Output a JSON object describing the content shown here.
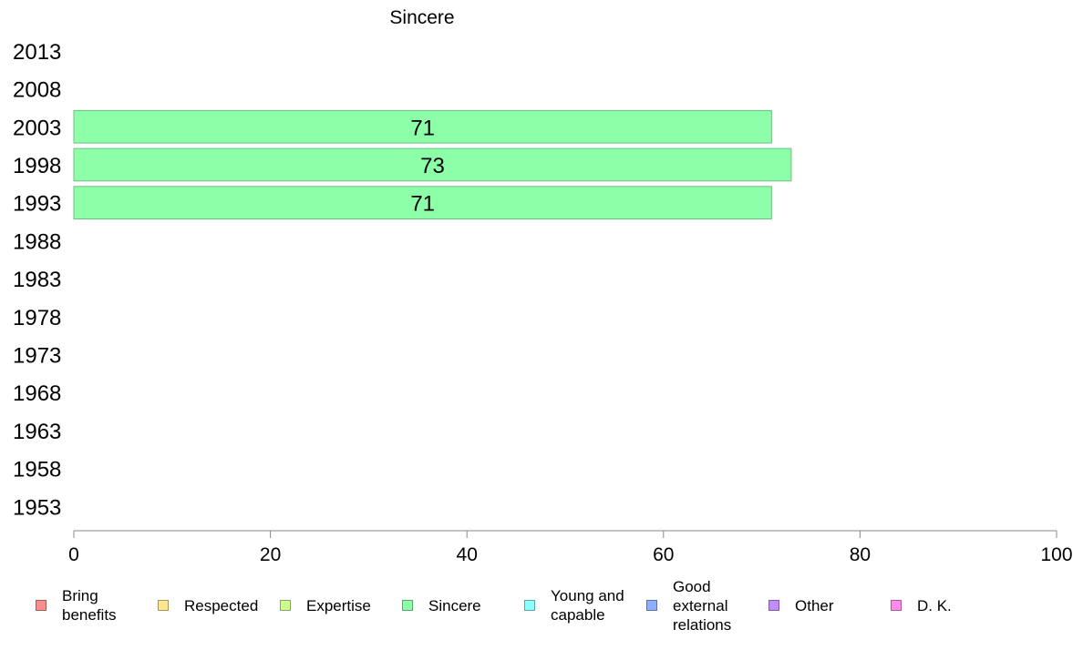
{
  "chart_data": {
    "type": "bar",
    "orientation": "horizontal",
    "title": "Sincere",
    "categories": [
      "2013",
      "2008",
      "2003",
      "1998",
      "1993",
      "1988",
      "1983",
      "1978",
      "1973",
      "1968",
      "1963",
      "1958",
      "1953"
    ],
    "values": [
      null,
      null,
      71,
      73,
      71,
      null,
      null,
      null,
      null,
      null,
      null,
      null,
      null
    ],
    "data_labels": [
      "",
      "",
      "71",
      "73",
      "71",
      "",
      "",
      "",
      "",
      "",
      "",
      "",
      ""
    ],
    "bar_color": "#8cffa8",
    "bar_edge_color": "#6fbf80",
    "xlim": [
      0,
      100
    ],
    "xticks": [
      "0",
      "20",
      "40",
      "60",
      "80",
      "100"
    ],
    "xlabel": "",
    "ylabel": "",
    "grid": false,
    "legend_placement": "bottom",
    "legend": [
      {
        "label": "Bring benefits",
        "color": "#ff8c8c"
      },
      {
        "label": "Respected",
        "color": "#ffe68c"
      },
      {
        "label": "Expertise",
        "color": "#ccff8c"
      },
      {
        "label": "Sincere",
        "color": "#8cffa8"
      },
      {
        "label": "Young and capable",
        "color": "#8cffff"
      },
      {
        "label": "Good external relations",
        "color": "#8cb0ff"
      },
      {
        "label": "Other",
        "color": "#c08cff"
      },
      {
        "label": "D. K.",
        "color": "#ff8ce8"
      }
    ]
  }
}
